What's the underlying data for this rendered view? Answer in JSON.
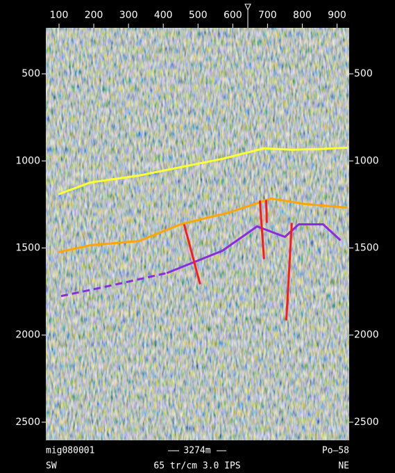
{
  "chart_data": {
    "type": "seismic",
    "xlim": [
      62,
      935
    ],
    "xticks": [
      100,
      200,
      300,
      400,
      500,
      600,
      700,
      800,
      900
    ],
    "ylim": [
      236,
      2604
    ],
    "y_inverted": true,
    "yticks": [
      500,
      1000,
      1500,
      2000,
      2500
    ],
    "series": [
      {
        "color": "#ffff33",
        "dashed": false,
        "x": [
          98,
          190,
          330,
          450,
          570,
          690,
          770,
          850,
          930
        ],
        "values": [
          1192,
          1124,
          1084,
          1036,
          988,
          928,
          936,
          932,
          924
        ]
      },
      {
        "color": "#ffa500",
        "dashed": false,
        "x": [
          98,
          190,
          330,
          450,
          590,
          710,
          810,
          930
        ],
        "values": [
          1524,
          1484,
          1460,
          1364,
          1296,
          1216,
          1248,
          1268
        ]
      },
      {
        "color": "#8a2be2",
        "dashed": false,
        "x": [
          410,
          570,
          670,
          750,
          790,
          860,
          910
        ],
        "values": [
          1644,
          1516,
          1376,
          1436,
          1364,
          1364,
          1456
        ]
      },
      {
        "color": "#8a2be2",
        "dashed": true,
        "x": [
          106,
          230,
          410
        ],
        "values": [
          1776,
          1724,
          1644
        ]
      },
      {
        "color": "#ff1a1a",
        "dashed": false,
        "x": [
          460,
          506
        ],
        "values": [
          1364,
          1708
        ]
      },
      {
        "color": "#ff1a1a",
        "dashed": false,
        "x": [
          678,
          690
        ],
        "values": [
          1228,
          1564
        ]
      },
      {
        "color": "#ff1a1a",
        "dashed": false,
        "x": [
          696,
          698
        ],
        "values": [
          1224,
          1356
        ]
      },
      {
        "color": "#ff1a1a",
        "dashed": false,
        "x": [
          770,
          754
        ],
        "values": [
          1356,
          1916
        ]
      }
    ],
    "line_name": "mig080001",
    "station": "Po–58",
    "left_direction": "SW",
    "right_direction": "NE",
    "acquisition": "65 tr/cm 3.0 IPS",
    "scale_bar": "3274m"
  }
}
